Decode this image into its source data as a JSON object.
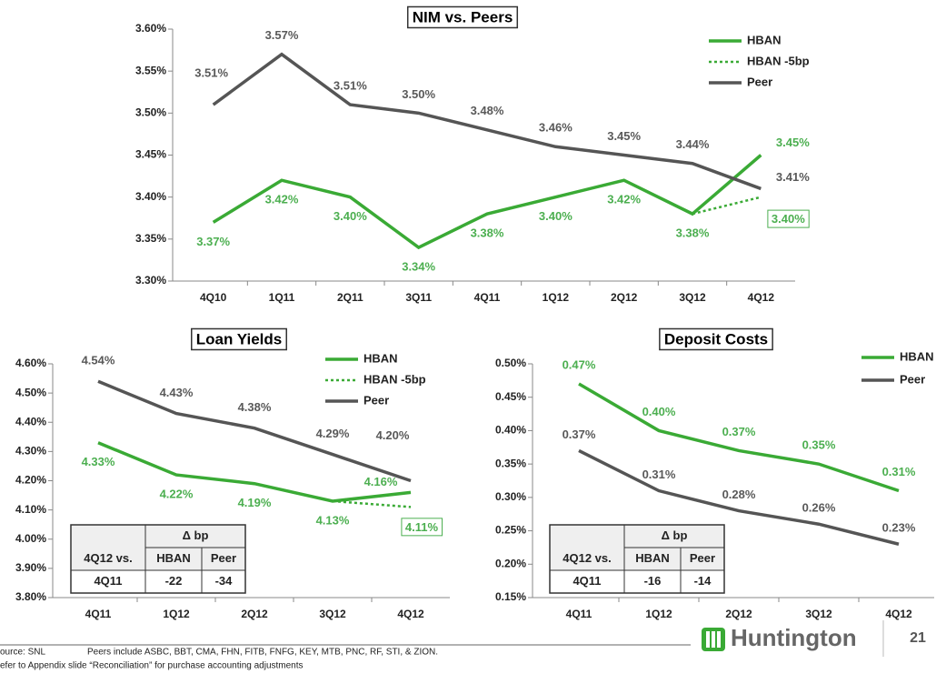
{
  "chart_data": [
    {
      "type": "line",
      "title": "NIM vs. Peers",
      "categories": [
        "4Q10",
        "1Q11",
        "2Q11",
        "3Q11",
        "4Q11",
        "1Q12",
        "2Q12",
        "3Q12",
        "4Q12"
      ],
      "series": [
        {
          "name": "HBAN",
          "color": "#3aaa35",
          "line_style": "solid",
          "values": [
            3.37,
            3.42,
            3.4,
            3.34,
            3.38,
            3.4,
            3.42,
            3.38,
            3.45
          ],
          "value_labels": [
            "3.37%",
            "3.42%",
            "3.40%",
            "3.34%",
            "3.38%",
            "3.40%",
            "3.42%",
            "3.38%",
            "3.45%"
          ]
        },
        {
          "name": "HBAN -5bp",
          "color": "#3aaa35",
          "line_style": "dotted",
          "values": [
            null,
            null,
            null,
            null,
            null,
            null,
            null,
            3.38,
            3.4
          ],
          "value_labels": [
            null,
            null,
            null,
            null,
            null,
            null,
            null,
            null,
            "3.40%"
          ]
        },
        {
          "name": "Peer",
          "color": "#555555",
          "line_style": "solid",
          "values": [
            3.51,
            3.57,
            3.51,
            3.5,
            3.48,
            3.46,
            3.45,
            3.44,
            3.41
          ],
          "value_labels": [
            "3.51%",
            "3.57%",
            "3.51%",
            "3.50%",
            "3.48%",
            "3.46%",
            "3.45%",
            "3.44%",
            "3.41%"
          ]
        }
      ],
      "ylim": [
        3.3,
        3.6
      ],
      "yticks": [
        {
          "value": 3.3,
          "label": "3.30%"
        },
        {
          "value": 3.35,
          "label": "3.35%"
        },
        {
          "value": 3.4,
          "label": "3.40%"
        },
        {
          "value": 3.45,
          "label": "3.45%"
        },
        {
          "value": 3.5,
          "label": "3.50%"
        },
        {
          "value": 3.55,
          "label": "3.55%"
        },
        {
          "value": 3.6,
          "label": "3.60%"
        }
      ]
    },
    {
      "type": "line",
      "title": "Loan Yields",
      "categories": [
        "4Q11",
        "1Q12",
        "2Q12",
        "3Q12",
        "4Q12"
      ],
      "series": [
        {
          "name": "HBAN",
          "color": "#3aaa35",
          "line_style": "solid",
          "values": [
            4.33,
            4.22,
            4.19,
            4.13,
            4.16
          ],
          "value_labels": [
            "4.33%",
            "4.22%",
            "4.19%",
            "4.13%",
            "4.16%"
          ]
        },
        {
          "name": "HBAN -5bp",
          "color": "#3aaa35",
          "line_style": "dotted",
          "values": [
            null,
            null,
            null,
            4.13,
            4.11
          ],
          "value_labels": [
            null,
            null,
            null,
            null,
            "4.11%"
          ]
        },
        {
          "name": "Peer",
          "color": "#555555",
          "line_style": "solid",
          "values": [
            4.54,
            4.43,
            4.38,
            4.29,
            4.2
          ],
          "value_labels": [
            "4.54%",
            "4.43%",
            "4.38%",
            "4.29%",
            "4.20%"
          ]
        }
      ],
      "ylim": [
        3.8,
        4.6
      ],
      "yticks": [
        {
          "value": 3.8,
          "label": "3.80%"
        },
        {
          "value": 3.9,
          "label": "3.90%"
        },
        {
          "value": 4.0,
          "label": "4.00%"
        },
        {
          "value": 4.1,
          "label": "4.10%"
        },
        {
          "value": 4.2,
          "label": "4.20%"
        },
        {
          "value": 4.3,
          "label": "4.30%"
        },
        {
          "value": 4.4,
          "label": "4.40%"
        },
        {
          "value": 4.5,
          "label": "4.50%"
        },
        {
          "value": 4.6,
          "label": "4.60%"
        }
      ]
    },
    {
      "type": "line",
      "title": "Deposit Costs",
      "categories": [
        "4Q11",
        "1Q12",
        "2Q12",
        "3Q12",
        "4Q12"
      ],
      "series": [
        {
          "name": "HBAN",
          "color": "#3aaa35",
          "line_style": "solid",
          "values": [
            0.47,
            0.4,
            0.37,
            0.35,
            0.31
          ],
          "value_labels": [
            "0.47%",
            "0.40%",
            "0.37%",
            "0.35%",
            "0.31%"
          ]
        },
        {
          "name": "Peer",
          "color": "#555555",
          "line_style": "solid",
          "values": [
            0.37,
            0.31,
            0.28,
            0.26,
            0.23
          ],
          "value_labels": [
            "0.37%",
            "0.31%",
            "0.28%",
            "0.26%",
            "0.23%"
          ]
        }
      ],
      "ylim": [
        0.15,
        0.5
      ],
      "yticks": [
        {
          "value": 0.15,
          "label": "0.15%"
        },
        {
          "value": 0.2,
          "label": "0.20%"
        },
        {
          "value": 0.25,
          "label": "0.25%"
        },
        {
          "value": 0.3,
          "label": "0.30%"
        },
        {
          "value": 0.35,
          "label": "0.35%"
        },
        {
          "value": 0.4,
          "label": "0.40%"
        },
        {
          "value": 0.45,
          "label": "0.45%"
        },
        {
          "value": 0.5,
          "label": "0.50%"
        }
      ]
    }
  ],
  "tables": [
    {
      "header": "Δ bp",
      "rows": [
        [
          "4Q12 vs.",
          "HBAN",
          "Peer"
        ],
        [
          "4Q11",
          "-22",
          "-34"
        ]
      ]
    },
    {
      "header": "Δ bp",
      "rows": [
        [
          "4Q12 vs.",
          "HBAN",
          "Peer"
        ],
        [
          "4Q11",
          "-16",
          "-14"
        ]
      ]
    }
  ],
  "footer": {
    "source": "ource: SNL",
    "peers": "Peers include ASBC, BBT, CMA, FHN, FITB, FNFG, KEY, MTB, PNC, RF, STI, & ZION.",
    "note": "efer to Appendix slide “Reconciliation”  for purchase accounting adjustments"
  },
  "logo": "Huntington",
  "page_number": "21"
}
